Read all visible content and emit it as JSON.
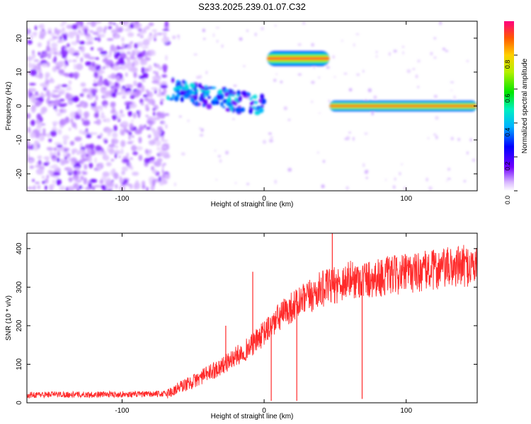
{
  "title": "S233.2025.239.01.07.C32",
  "chart_data": [
    {
      "type": "heatmap",
      "title": "S233.2025.239.01.07.C32",
      "xlabel": "Height of straight line (km)",
      "ylabel": "Frequency (Hz)",
      "xlim": [
        -167,
        150
      ],
      "ylim": [
        -25,
        25
      ],
      "xticks": [
        -100,
        0,
        100
      ],
      "xtick_labels": [
        "-100",
        "0",
        "100"
      ],
      "yticks": [
        -20,
        -10,
        0,
        10,
        20
      ],
      "ytick_labels": [
        "-20",
        "-10",
        "0",
        "10",
        "20"
      ],
      "colorbar": {
        "label": "Normalized spectral amplitude",
        "range": [
          0,
          1
        ],
        "ticks": [
          0.0,
          0.2,
          0.4,
          0.6,
          0.8
        ],
        "tick_labels": [
          "0.0",
          "0.2",
          "0.4",
          "0.6",
          "0.8"
        ]
      },
      "segments": [
        {
          "name": "noise",
          "x_range": [
            -167,
            -68
          ],
          "freq_range": [
            -25,
            25
          ],
          "amplitude": 0.15
        },
        {
          "name": "weak-echo",
          "x_range": [
            -68,
            0
          ],
          "freq_center": [
            5,
            0
          ],
          "amplitude": 0.45
        },
        {
          "name": "ridge-14hz",
          "x_range": [
            2,
            46
          ],
          "freq_center": 14,
          "amplitude": 0.95
        },
        {
          "name": "ridge-0hz",
          "x_range": [
            46,
            150
          ],
          "freq_center": 0,
          "amplitude": 0.95
        }
      ]
    },
    {
      "type": "line",
      "xlabel": "Height of straight line (km)",
      "ylabel": "SNR (10 * v/v)",
      "xlim": [
        -167,
        150
      ],
      "ylim": [
        0,
        440
      ],
      "xticks": [
        -100,
        0,
        100
      ],
      "xtick_labels": [
        "-100",
        "0",
        "100"
      ],
      "yticks": [
        0,
        100,
        200,
        300,
        400
      ],
      "ytick_labels": [
        "0",
        "100",
        "200",
        "300",
        "400"
      ],
      "series": [
        {
          "name": "SNR",
          "color": "#ff2a2a",
          "x": [
            -167,
            -150,
            -130,
            -110,
            -90,
            -70,
            -65,
            -60,
            -50,
            -40,
            -30,
            -20,
            -10,
            0,
            10,
            20,
            30,
            40,
            50,
            60,
            70,
            80,
            90,
            100,
            110,
            120,
            130,
            140,
            150
          ],
          "y": [
            20,
            22,
            21,
            22,
            22,
            23,
            28,
            40,
            55,
            75,
            95,
            120,
            145,
            180,
            220,
            250,
            270,
            295,
            305,
            320,
            320,
            325,
            330,
            335,
            340,
            345,
            350,
            355,
            355
          ],
          "spikes": [
            {
              "x": -8,
              "y": 340
            },
            {
              "x": -27,
              "y": 200
            },
            {
              "x": 48,
              "y": 440
            },
            {
              "x": 20,
              "y": 240
            },
            {
              "x": 5,
              "y": 5
            },
            {
              "x": 23,
              "y": 5
            },
            {
              "x": 69,
              "y": 10
            }
          ]
        }
      ]
    }
  ]
}
